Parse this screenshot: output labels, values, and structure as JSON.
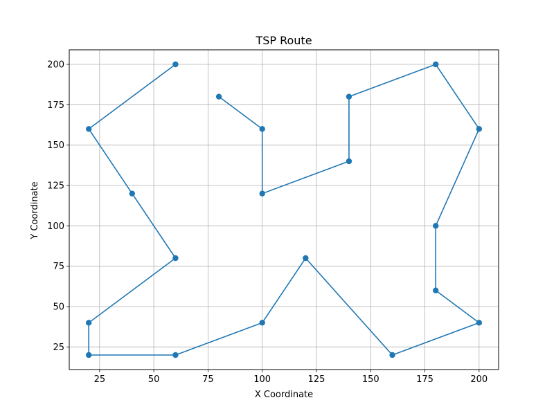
{
  "chart_data": {
    "type": "line",
    "title": "TSP Route",
    "xlabel": "X Coordinate",
    "ylabel": "Y Coordinate",
    "xlim": [
      11,
      209
    ],
    "ylim": [
      11.0,
      209.0
    ],
    "xticks": [
      25,
      50,
      75,
      100,
      125,
      150,
      175,
      200
    ],
    "yticks": [
      25,
      50,
      75,
      100,
      125,
      150,
      175,
      200
    ],
    "grid": true,
    "legend": "none",
    "series": [
      {
        "color": "#1f77b4",
        "marker": "circle",
        "points": [
          {
            "x": 60,
            "y": 200
          },
          {
            "x": 20,
            "y": 160
          },
          {
            "x": 40,
            "y": 120
          },
          {
            "x": 60,
            "y": 80
          },
          {
            "x": 20,
            "y": 40
          },
          {
            "x": 20,
            "y": 20
          },
          {
            "x": 60,
            "y": 20
          },
          {
            "x": 100,
            "y": 40
          },
          {
            "x": 120,
            "y": 80
          },
          {
            "x": 160,
            "y": 20
          },
          {
            "x": 200,
            "y": 40
          },
          {
            "x": 180,
            "y": 60
          },
          {
            "x": 180,
            "y": 100
          },
          {
            "x": 200,
            "y": 160
          },
          {
            "x": 180,
            "y": 200
          },
          {
            "x": 140,
            "y": 180
          },
          {
            "x": 140,
            "y": 140
          },
          {
            "x": 100,
            "y": 120
          },
          {
            "x": 100,
            "y": 160
          },
          {
            "x": 80,
            "y": 180
          }
        ]
      }
    ]
  }
}
